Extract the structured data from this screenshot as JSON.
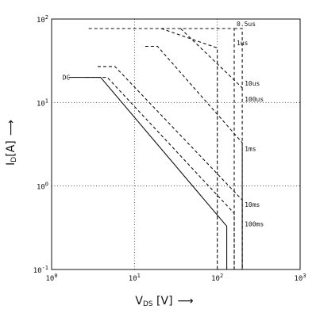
{
  "chart_data": {
    "type": "line",
    "title": "",
    "x_scale": "log",
    "y_scale": "log",
    "xlim": [
      1,
      1000
    ],
    "ylim": [
      0.1,
      100
    ],
    "grid": true,
    "grid_style": "dotted",
    "xlabel": {
      "main": "V",
      "sub": "DS",
      "unit": " [V]",
      "arrow": "⟶"
    },
    "ylabel": {
      "main": "I",
      "sub": "D",
      "unit": "[A]",
      "arrow": "⟶"
    },
    "x_ticks": [
      {
        "value": 1,
        "base": "10",
        "exp": "0"
      },
      {
        "value": 10,
        "base": "10",
        "exp": "1"
      },
      {
        "value": 100,
        "base": "10",
        "exp": "2"
      },
      {
        "value": 1000,
        "base": "10",
        "exp": "3"
      }
    ],
    "y_ticks": [
      {
        "value": 0.1,
        "base": "10",
        "exp": "-1"
      },
      {
        "value": 1,
        "base": "10",
        "exp": "0"
      },
      {
        "value": 10,
        "base": "10",
        "exp": "1"
      },
      {
        "value": 100,
        "base": "10",
        "exp": "2"
      }
    ],
    "series": [
      {
        "name": "DC",
        "dashed": false,
        "points": [
          [
            1.6,
            20
          ],
          [
            3.9,
            20
          ],
          [
            130,
            0.33
          ],
          [
            130,
            0.1
          ]
        ]
      },
      {
        "name": "100ms",
        "dashed": true,
        "points": [
          [
            2.6,
            20
          ],
          [
            4.7,
            20
          ],
          [
            160,
            0.47
          ],
          [
            160,
            0.1
          ]
        ]
      },
      {
        "name": "10ms",
        "dashed": true,
        "points": [
          [
            3.6,
            27
          ],
          [
            5.8,
            27
          ],
          [
            200,
            0.68
          ],
          [
            200,
            0.1
          ]
        ]
      },
      {
        "name": "1ms",
        "dashed": true,
        "points": [
          [
            13.5,
            47
          ],
          [
            19,
            47
          ],
          [
            200,
            3.3
          ],
          [
            200,
            0.1
          ]
        ]
      },
      {
        "name": "100us",
        "dashed": true,
        "points": [
          [
            200,
            15
          ],
          [
            200,
            0.1
          ]
        ]
      },
      {
        "name": "10us",
        "dashed": true,
        "points": [
          [
            36,
            77
          ],
          [
            200,
            15
          ]
        ]
      },
      {
        "name": "1us",
        "dashed": true,
        "points": [
          [
            2.8,
            77
          ],
          [
            160,
            77
          ],
          [
            160,
            48
          ],
          [
            160,
            0.1
          ]
        ]
      },
      {
        "name": "0.5us",
        "dashed": true,
        "points": [
          [
            160,
            77
          ],
          [
            200,
            77
          ],
          [
            200,
            15
          ]
        ]
      },
      {
        "name": "",
        "dashed": true,
        "points": [
          [
            21,
            77
          ],
          [
            100,
            45
          ],
          [
            100,
            0.1
          ]
        ]
      }
    ],
    "labels": [
      {
        "text": "DC",
        "x": 1.6,
        "y": 20,
        "anchor": "end"
      },
      {
        "text": "100ms",
        "x": 200,
        "y": 0.35
      },
      {
        "text": "10ms",
        "x": 200,
        "y": 0.6
      },
      {
        "text": "1ms",
        "x": 200,
        "y": 2.8
      },
      {
        "text": "100us",
        "x": 200,
        "y": 11
      },
      {
        "text": "10us",
        "x": 200,
        "y": 17
      },
      {
        "text": "1us",
        "x": 160,
        "y": 52
      },
      {
        "text": "0.5us",
        "x": 160,
        "y": 88
      }
    ]
  }
}
